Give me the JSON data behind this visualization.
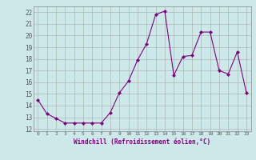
{
  "x": [
    0,
    1,
    2,
    3,
    4,
    5,
    6,
    7,
    8,
    9,
    10,
    11,
    12,
    13,
    14,
    15,
    16,
    17,
    18,
    19,
    20,
    21,
    22,
    23
  ],
  "y": [
    14.5,
    13.3,
    12.9,
    12.5,
    12.5,
    12.5,
    12.5,
    12.5,
    13.4,
    15.1,
    16.1,
    17.9,
    19.3,
    21.8,
    22.1,
    16.6,
    18.2,
    18.3,
    20.3,
    20.3,
    17.0,
    16.7,
    18.6,
    15.1
  ],
  "line_color": "#800080",
  "marker": "D",
  "marker_size": 2,
  "bg_color": "#cce8e8",
  "grid_color": "#aaaaaa",
  "xlabel": "Windchill (Refroidissement éolien,°C)",
  "ylabel_ticks": [
    12,
    13,
    14,
    15,
    16,
    17,
    18,
    19,
    20,
    21,
    22
  ],
  "xticks": [
    0,
    1,
    2,
    3,
    4,
    5,
    6,
    7,
    8,
    9,
    10,
    11,
    12,
    13,
    14,
    15,
    16,
    17,
    18,
    19,
    20,
    21,
    22,
    23
  ],
  "xlim": [
    -0.5,
    23.5
  ],
  "ylim": [
    11.8,
    22.5
  ]
}
